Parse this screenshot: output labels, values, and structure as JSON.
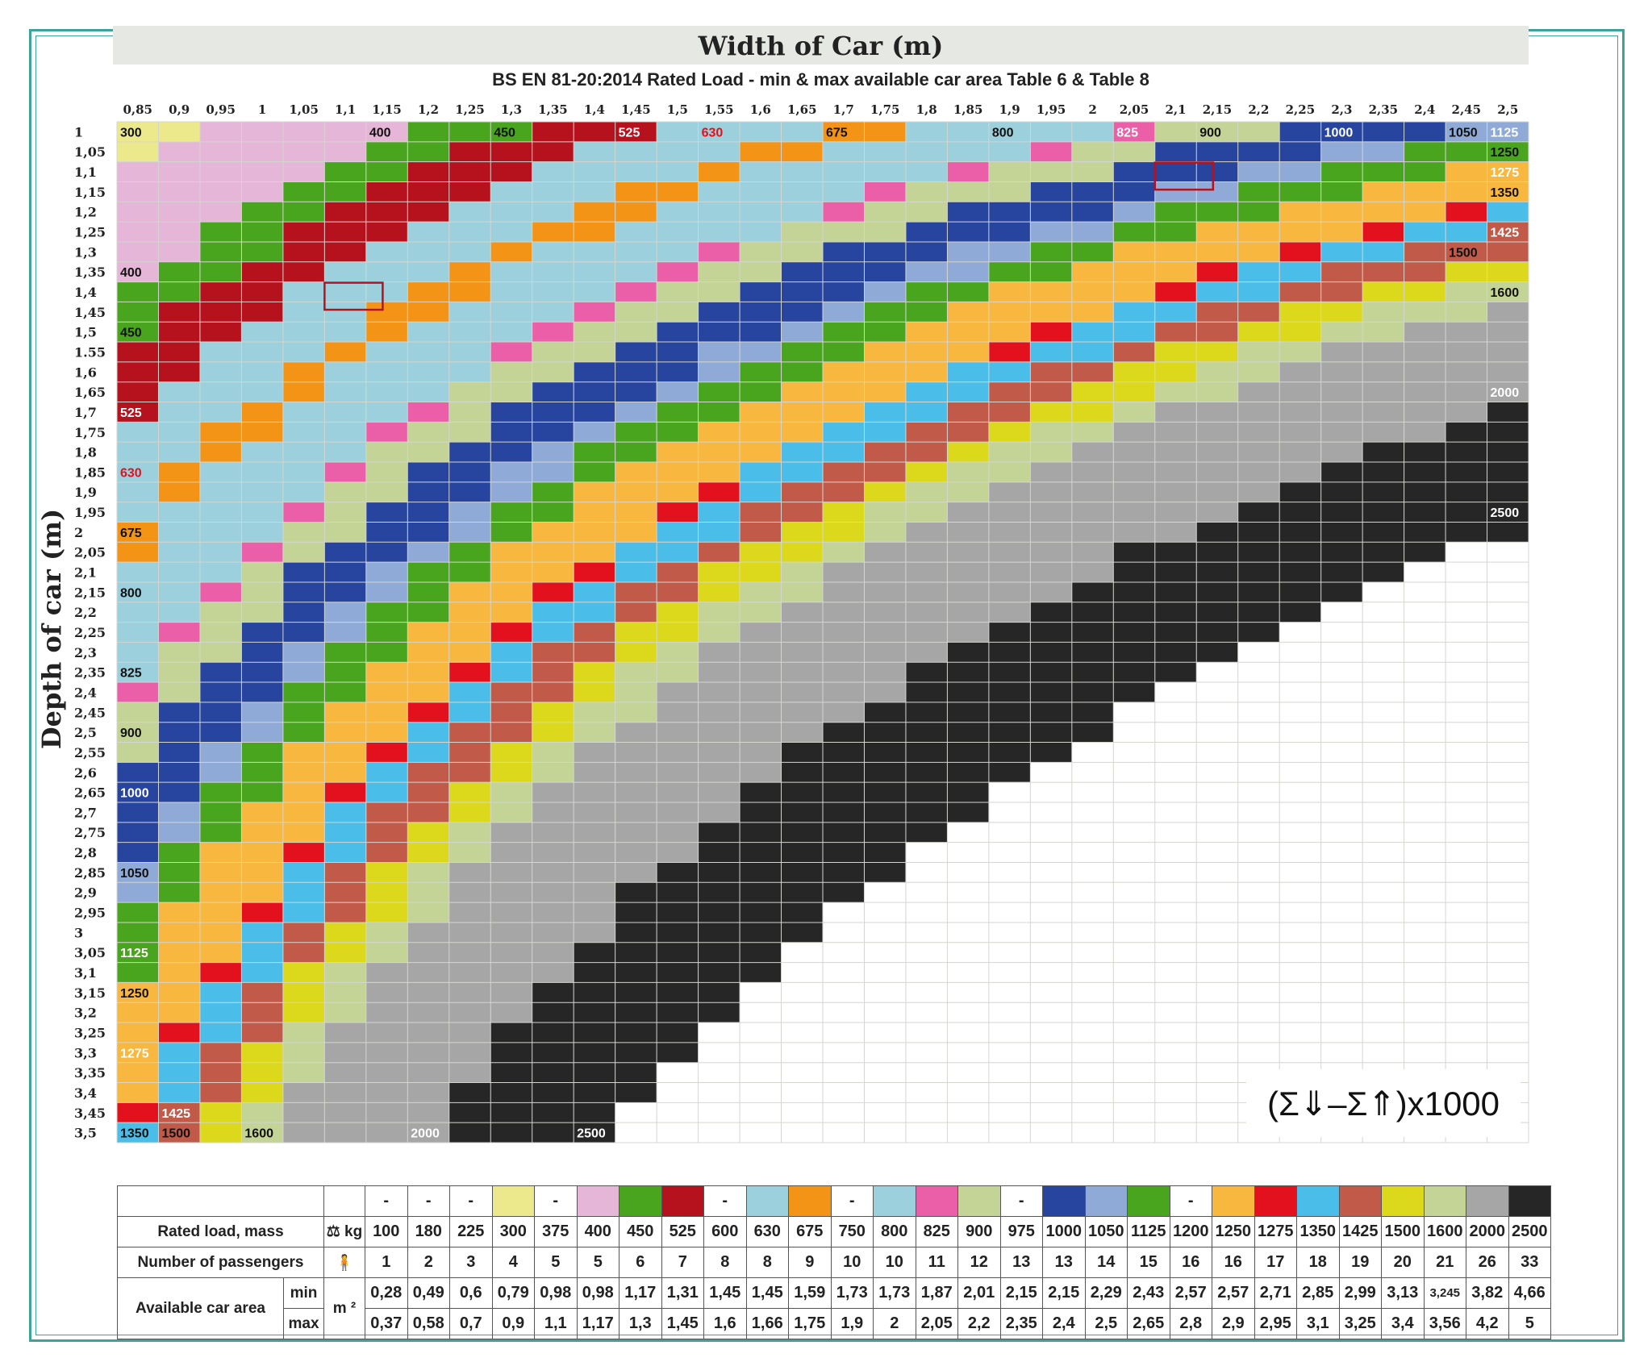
{
  "chart_data": {
    "type": "heatmap",
    "title": "Width of Car   (m)",
    "subtitle": "BS EN 81-20:2014    Rated Load -  min & max available car area  Table 6 & Table 8",
    "xlabel": "Width of Car   (m)",
    "ylabel": "Depth of car  (m)",
    "x_labels": [
      "0,85",
      "0,9",
      "0,95",
      "1",
      "1,05",
      "1,1",
      "1,15",
      "1,2",
      "1,25",
      "1,3",
      "1,35",
      "1,4",
      "1,45",
      "1,5",
      "1,55",
      "1,6",
      "1,65",
      "1,7",
      "1,75",
      "1,8",
      "1,85",
      "1,9",
      "1,95",
      "2",
      "2,05",
      "2,1",
      "2,15",
      "2,2",
      "2,25",
      "2,3",
      "2,35",
      "2,4",
      "2,45",
      "2,5"
    ],
    "x_values": [
      0.85,
      0.9,
      0.95,
      1.0,
      1.05,
      1.1,
      1.15,
      1.2,
      1.25,
      1.3,
      1.35,
      1.4,
      1.45,
      1.5,
      1.55,
      1.6,
      1.65,
      1.7,
      1.75,
      1.8,
      1.85,
      1.9,
      1.95,
      2.0,
      2.05,
      2.1,
      2.15,
      2.2,
      2.25,
      2.3,
      2.35,
      2.4,
      2.45,
      2.5
    ],
    "y_labels": [
      "1",
      "1,05",
      "1,1",
      "1,15",
      "1,2",
      "1,25",
      "1,3",
      "1,35",
      "1,4",
      "1,45",
      "1,5",
      "1.55",
      "1,6",
      "1,65",
      "1,7",
      "1,75",
      "1,8",
      "1,85",
      "1,9",
      "1,95",
      "2",
      "2,05",
      "2,1",
      "2,15",
      "2,2",
      "2,25",
      "2,3",
      "2,35",
      "2,4",
      "2,45",
      "2,5",
      "2,55",
      "2,6",
      "2,65",
      "2,7",
      "2,75",
      "2,8",
      "2,85",
      "2,9",
      "2,95",
      "3",
      "3,05",
      "3,1",
      "3,15",
      "3,2",
      "3,25",
      "3,3",
      "3,35",
      "3,4",
      "3,45",
      "3,5"
    ],
    "y_values": [
      1.0,
      1.05,
      1.1,
      1.15,
      1.2,
      1.25,
      1.3,
      1.35,
      1.4,
      1.45,
      1.5,
      1.55,
      1.6,
      1.65,
      1.7,
      1.75,
      1.8,
      1.85,
      1.9,
      1.95,
      2.0,
      2.05,
      2.1,
      2.15,
      2.2,
      2.25,
      2.3,
      2.35,
      2.4,
      2.45,
      2.5,
      2.55,
      2.6,
      2.65,
      2.7,
      2.75,
      2.8,
      2.85,
      2.9,
      2.95,
      3.0,
      3.05,
      3.1,
      3.15,
      3.2,
      3.25,
      3.3,
      3.35,
      3.4,
      3.45,
      3.5
    ],
    "cell_value": "width x depth (m²) mapped to the rated load class whose min/max available car area contains it",
    "highlighted_cells": [
      {
        "width": 1.1,
        "depth": 1.4
      },
      {
        "width": 2.1,
        "depth": 1.1
      }
    ],
    "load_classes": [
      {
        "kg": 100,
        "passengers": 1,
        "min": 0.28,
        "max": 0.37,
        "color": "#ffffff",
        "swatch": "-"
      },
      {
        "kg": 180,
        "passengers": 2,
        "min": 0.49,
        "max": 0.58,
        "color": "#ffffff",
        "swatch": "-"
      },
      {
        "kg": 225,
        "passengers": 3,
        "min": 0.6,
        "max": 0.7,
        "color": "#ffffff",
        "swatch": "-"
      },
      {
        "kg": 300,
        "passengers": 4,
        "min": 0.79,
        "max": 0.9,
        "color": "#ece88c",
        "swatch": ""
      },
      {
        "kg": 375,
        "passengers": 5,
        "min": 0.98,
        "max": 1.1,
        "color": "#ffffff",
        "swatch": "-"
      },
      {
        "kg": 400,
        "passengers": 5,
        "min": 0.98,
        "max": 1.17,
        "color": "#e6b6d8",
        "swatch": ""
      },
      {
        "kg": 450,
        "passengers": 6,
        "min": 1.17,
        "max": 1.3,
        "color": "#4aa51e",
        "swatch": ""
      },
      {
        "kg": 525,
        "passengers": 7,
        "min": 1.31,
        "max": 1.45,
        "color": "#b5121e",
        "swatch": ""
      },
      {
        "kg": 600,
        "passengers": 8,
        "min": 1.45,
        "max": 1.6,
        "color": "#ffffff",
        "swatch": "-"
      },
      {
        "kg": 630,
        "passengers": 8,
        "min": 1.45,
        "max": 1.66,
        "color": "#9bd0dc",
        "swatch": ""
      },
      {
        "kg": 675,
        "passengers": 9,
        "min": 1.59,
        "max": 1.75,
        "color": "#f39416",
        "swatch": ""
      },
      {
        "kg": 750,
        "passengers": 10,
        "min": 1.73,
        "max": 1.9,
        "color": "#ffffff",
        "swatch": "-"
      },
      {
        "kg": 800,
        "passengers": 10,
        "min": 1.73,
        "max": 2.0,
        "color": "#9bd0dc",
        "swatch": ""
      },
      {
        "kg": 825,
        "passengers": 11,
        "min": 1.87,
        "max": 2.05,
        "color": "#ea5fa8",
        "swatch": ""
      },
      {
        "kg": 900,
        "passengers": 12,
        "min": 2.01,
        "max": 2.2,
        "color": "#c4d496",
        "swatch": ""
      },
      {
        "kg": 975,
        "passengers": 13,
        "min": 2.15,
        "max": 2.35,
        "color": "#ffffff",
        "swatch": "-"
      },
      {
        "kg": 1000,
        "passengers": 13,
        "min": 2.15,
        "max": 2.4,
        "color": "#27449e",
        "swatch": ""
      },
      {
        "kg": 1050,
        "passengers": 14,
        "min": 2.29,
        "max": 2.5,
        "color": "#8faad6",
        "swatch": ""
      },
      {
        "kg": 1125,
        "passengers": 15,
        "min": 2.43,
        "max": 2.65,
        "color": "#4aa51e",
        "swatch": ""
      },
      {
        "kg": 1200,
        "passengers": 16,
        "min": 2.57,
        "max": 2.8,
        "color": "#ffffff",
        "swatch": "-"
      },
      {
        "kg": 1250,
        "passengers": 16,
        "min": 2.57,
        "max": 2.9,
        "color": "#f8b73e",
        "swatch": ""
      },
      {
        "kg": 1275,
        "passengers": 17,
        "min": 2.71,
        "max": 2.95,
        "color": "#e3111e",
        "swatch": ""
      },
      {
        "kg": 1350,
        "passengers": 18,
        "min": 2.85,
        "max": 3.1,
        "color": "#4bbde9",
        "swatch": ""
      },
      {
        "kg": 1425,
        "passengers": 19,
        "min": 2.99,
        "max": 3.25,
        "color": "#c15a48",
        "swatch": ""
      },
      {
        "kg": 1500,
        "passengers": 20,
        "min": 3.13,
        "max": 3.4,
        "color": "#dcd91c",
        "swatch": ""
      },
      {
        "kg": 1600,
        "passengers": 21,
        "min": "3,245",
        "max": 3.56,
        "color": "#c4d496",
        "swatch": ""
      },
      {
        "kg": 2000,
        "passengers": 26,
        "min": 3.82,
        "max": 4.2,
        "color": "#a6a6a6",
        "swatch": ""
      },
      {
        "kg": 2500,
        "passengers": 33,
        "min": 4.66,
        "max": 5,
        "color": "#262626",
        "swatch": ""
      }
    ]
  },
  "grid_labels": {
    "top": [
      {
        "text": "300",
        "c": 0,
        "r": 0,
        "color": "#111111"
      },
      {
        "text": "400",
        "c": 6,
        "r": 0,
        "color": "#111111"
      },
      {
        "text": "450",
        "c": 9,
        "r": 0,
        "color": "#111111"
      },
      {
        "text": "525",
        "c": 12,
        "r": 0,
        "color": "#ffffff"
      },
      {
        "text": "630",
        "c": 14,
        "r": 0,
        "color": "#e3111e"
      },
      {
        "text": "675",
        "c": 17,
        "r": 0,
        "color": "#111111"
      },
      {
        "text": "800",
        "c": 21,
        "r": 0,
        "color": "#111111"
      },
      {
        "text": "825",
        "c": 24,
        "r": 0,
        "color": "#ffffff"
      },
      {
        "text": "900",
        "c": 26,
        "r": 0,
        "color": "#111111"
      },
      {
        "text": "1000",
        "c": 29,
        "r": 0,
        "color": "#ffffff"
      },
      {
        "text": "1050",
        "c": 32,
        "r": 0,
        "color": "#111111"
      },
      {
        "text": "1125",
        "c": 33,
        "r": 0,
        "color": "#ffffff"
      },
      {
        "text": "1250",
        "c": 33,
        "r": 1,
        "color": "#111111"
      },
      {
        "text": "1275",
        "c": 33,
        "r": 2,
        "color": "#ffffff"
      },
      {
        "text": "1350",
        "c": 33,
        "r": 3,
        "color": "#111111"
      },
      {
        "text": "1425",
        "c": 33,
        "r": 5,
        "color": "#ffffff"
      },
      {
        "text": "1500",
        "c": 32,
        "r": 6,
        "color": "#111111"
      },
      {
        "text": "1600",
        "c": 33,
        "r": 8,
        "color": "#111111"
      },
      {
        "text": "2000",
        "c": 33,
        "r": 13,
        "color": "#ffffff"
      },
      {
        "text": "2500",
        "c": 33,
        "r": 19,
        "color": "#ffffff"
      }
    ],
    "left": [
      {
        "text": "400",
        "c": 0,
        "r": 7,
        "color": "#111111"
      },
      {
        "text": "450",
        "c": 0,
        "r": 10,
        "color": "#111111"
      },
      {
        "text": "525",
        "c": 0,
        "r": 14,
        "color": "#ffffff"
      },
      {
        "text": "630",
        "c": 0,
        "r": 17,
        "color": "#e3111e"
      },
      {
        "text": "675",
        "c": 0,
        "r": 20,
        "color": "#111111"
      },
      {
        "text": "800",
        "c": 0,
        "r": 23,
        "color": "#111111"
      },
      {
        "text": "825",
        "c": 0,
        "r": 27,
        "color": "#111111"
      },
      {
        "text": "900",
        "c": 0,
        "r": 30,
        "color": "#111111"
      },
      {
        "text": "1000",
        "c": 0,
        "r": 33,
        "color": "#ffffff"
      },
      {
        "text": "1050",
        "c": 0,
        "r": 37,
        "color": "#111111"
      },
      {
        "text": "1125",
        "c": 0,
        "r": 41,
        "color": "#ffffff"
      },
      {
        "text": "1250",
        "c": 0,
        "r": 43,
        "color": "#111111"
      },
      {
        "text": "1275",
        "c": 0,
        "r": 46,
        "color": "#ffffff"
      },
      {
        "text": "1425",
        "c": 1,
        "r": 49,
        "color": "#ffffff"
      },
      {
        "text": "1350",
        "c": 0,
        "r": 50,
        "color": "#111111"
      },
      {
        "text": "1500",
        "c": 1,
        "r": 50,
        "color": "#111111"
      },
      {
        "text": "1600",
        "c": 3,
        "r": 50,
        "color": "#111111"
      },
      {
        "text": "2000",
        "c": 7,
        "r": 50,
        "color": "#ffffff"
      },
      {
        "text": "2500",
        "c": 11,
        "r": 50,
        "color": "#ffffff"
      }
    ]
  },
  "formula": "(Σ⇓–Σ⇑)x1000",
  "legend": {
    "row_labels": {
      "rated_load": "Rated load, mass",
      "passengers": "Number of passengers",
      "area": "Available car area",
      "min": "min",
      "max": "max"
    },
    "units": {
      "kg": "kg",
      "m2": "m ²"
    }
  }
}
